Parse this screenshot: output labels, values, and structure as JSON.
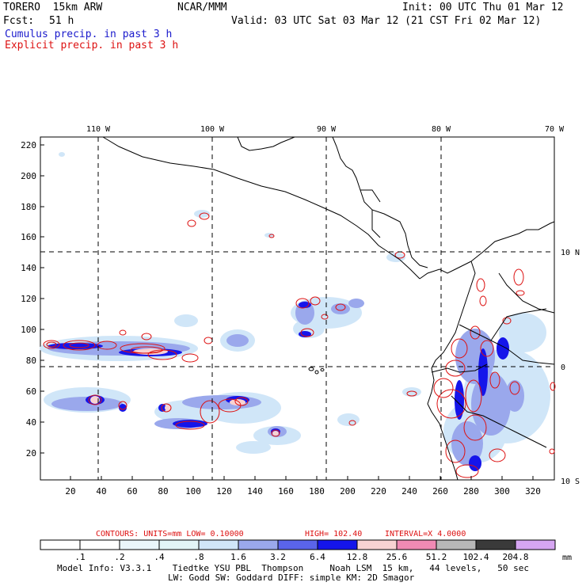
{
  "header": {
    "model": "TORERO  15km ARW",
    "center": "NCAR/MMM",
    "init": "Init: 00 UTC Thu 01 Mar 12",
    "fcst_label": "Fcst:",
    "fcst_value": "51 h",
    "valid": "Valid: 03 UTC Sat 03 Mar 12 (21 CST Fri 02 Mar 12)",
    "field1": "Cumulus precip. in past 3 h",
    "field2": "Explicit precip. in past 3 h"
  },
  "top_lon_labels": [
    "110 W",
    "100 W",
    "90 W",
    "80 W",
    "70 W"
  ],
  "right_lat_labels": [
    "10 N",
    "0",
    "10 S"
  ],
  "y_ticks": [
    "220",
    "200",
    "180",
    "160",
    "140",
    "120",
    "100",
    "80",
    "60",
    "40",
    "20"
  ],
  "x_ticks": [
    "20",
    "40",
    "60",
    "80",
    "100",
    "120",
    "140",
    "160",
    "180",
    "200",
    "220",
    "240",
    "260",
    "280",
    "300",
    "320"
  ],
  "contours_info": {
    "units": "CONTOURS:  UNITS=mm  LOW= 0.10000",
    "high": "HIGH=  102.40",
    "interval": "INTERVAL=X  4.0000"
  },
  "legend": {
    "labels": [
      ".1",
      ".2",
      ".4",
      ".8",
      "1.6",
      "3.2",
      "6.4",
      "12.8",
      "25.6",
      "51.2",
      "102.4",
      "204.8"
    ],
    "unit": "mm",
    "colors": [
      "#ffffff",
      "#ffffff",
      "#eaf6fb",
      "#e2f5f7",
      "#d0e6f8",
      "#9aa8ec",
      "#5a64ea",
      "#1515ea",
      "#f8d2d2",
      "#f08ab4",
      "#b8b8b8",
      "#3a3a3a",
      "#d6a6f2"
    ]
  },
  "footer": {
    "line1": "Model Info: V3.3.1    Tiedtke YSU PBL  Thompson     Noah LSM  15 km,   44 levels,   50 sec",
    "line2": "LW: Godd SW: Goddard DIFF: simple KM: 2D Smagor"
  }
}
